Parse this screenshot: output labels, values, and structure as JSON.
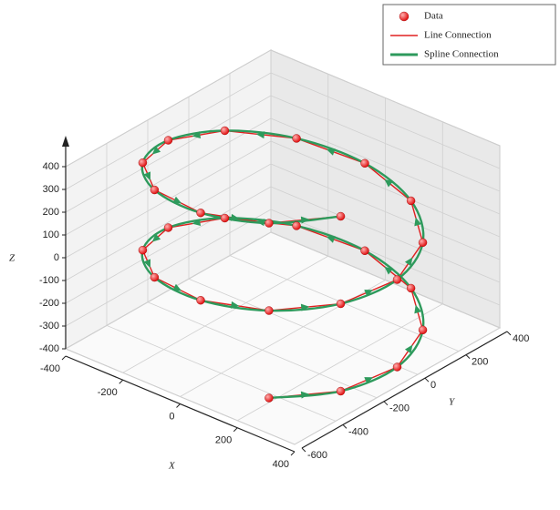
{
  "chart_data": {
    "type": "scatter3d",
    "x": [
      200,
      346,
      400,
      346,
      200,
      0,
      -200,
      -346,
      -400,
      -346,
      -200,
      0,
      200,
      346,
      400,
      346,
      200,
      0,
      -200,
      -346,
      -400,
      -346,
      -200,
      0,
      200,
      346
    ],
    "y": [
      -446,
      -300,
      -100,
      100,
      246,
      300,
      246,
      100,
      -100,
      -300,
      -446,
      -500,
      -446,
      -300,
      -100,
      100,
      246,
      300,
      246,
      100,
      -100,
      -300,
      -446,
      -500,
      -446,
      -300
    ],
    "z": [
      -380,
      -348,
      -316,
      -284,
      -252,
      -220,
      -188,
      -156,
      -124,
      -92,
      -60,
      -28,
      4,
      36,
      68,
      100,
      132,
      164,
      196,
      228,
      260,
      292,
      324,
      356,
      388,
      420
    ],
    "series": [
      {
        "name": "Data",
        "color": "#e01010",
        "mode": "markers"
      },
      {
        "name": "Line Connection",
        "color": "#e02020",
        "mode": "line"
      },
      {
        "name": "Spline Connection",
        "color": "#2e9a5c",
        "mode": "spline"
      }
    ],
    "xlabel": "X",
    "ylabel": "Y",
    "zlabel": "Z",
    "xlim": [
      -400,
      400
    ],
    "ylim": [
      -600,
      400
    ],
    "zlim": [
      -400,
      400
    ],
    "xticks": [
      -400,
      -200,
      0,
      200,
      400
    ],
    "yticks": [
      -600,
      -400,
      -200,
      0,
      200,
      400
    ],
    "zticks": [
      -400,
      -300,
      -200,
      -100,
      0,
      100,
      200,
      300,
      400
    ],
    "grid": true
  }
}
